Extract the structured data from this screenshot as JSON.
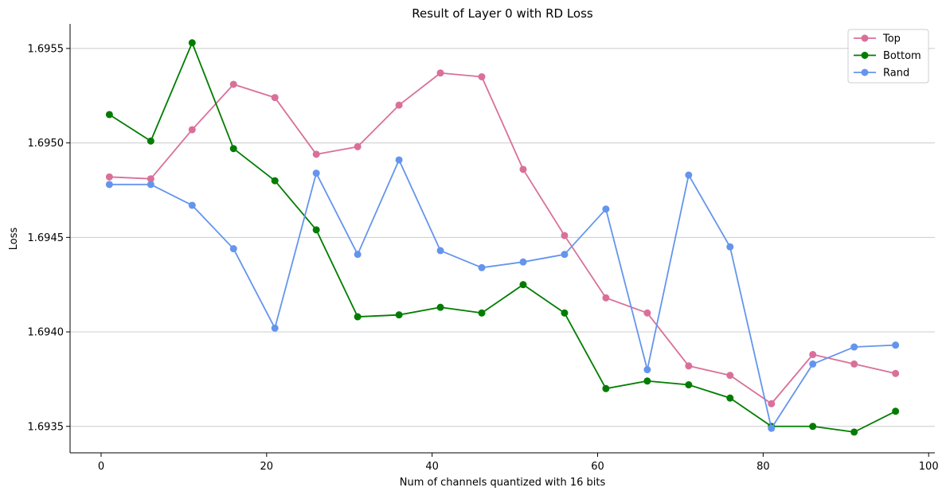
{
  "chart_data": {
    "type": "line",
    "title": "Result of Layer 0 with RD Loss",
    "xlabel": "Num of channels quantized with 16 bits",
    "ylabel": "Loss",
    "xlim": [
      -3.75,
      100.75
    ],
    "ylim": [
      1.69336,
      1.69563
    ],
    "x_ticks": [
      0,
      20,
      40,
      60,
      80,
      100
    ],
    "x_tick_labels": [
      "0",
      "20",
      "40",
      "60",
      "80",
      "100"
    ],
    "y_ticks": [
      1.6935,
      1.694,
      1.6945,
      1.695,
      1.6955
    ],
    "y_tick_labels": [
      "1.6935",
      "1.6940",
      "1.6945",
      "1.6950",
      "1.6955"
    ],
    "grid": "horizontal",
    "legend_position": "top-right",
    "x": [
      1,
      6,
      11,
      16,
      21,
      26,
      31,
      36,
      41,
      46,
      51,
      56,
      61,
      66,
      71,
      76,
      81,
      86,
      91,
      96
    ],
    "series": [
      {
        "name": "Top",
        "color": "#d9709a",
        "values": [
          1.69482,
          1.69481,
          1.69507,
          1.69531,
          1.69524,
          1.69494,
          1.69498,
          1.6952,
          1.69537,
          1.69535,
          1.69486,
          1.69451,
          1.69418,
          1.6941,
          1.69382,
          1.69377,
          1.69362,
          1.69388,
          1.69383,
          1.69378
        ]
      },
      {
        "name": "Bottom",
        "color": "#007d00",
        "values": [
          1.69515,
          1.69501,
          1.69553,
          1.69497,
          1.6948,
          1.69454,
          1.69408,
          1.69409,
          1.69413,
          1.6941,
          1.69425,
          1.6941,
          1.6937,
          1.69374,
          1.69372,
          1.69365,
          1.6935,
          1.6935,
          1.69347,
          1.69358
        ]
      },
      {
        "name": "Rand",
        "color": "#6495ed",
        "values": [
          1.69478,
          1.69478,
          1.69467,
          1.69444,
          1.69402,
          1.69484,
          1.69441,
          1.69491,
          1.69443,
          1.69434,
          1.69437,
          1.69441,
          1.69465,
          1.6938,
          1.69483,
          1.69445,
          1.69349,
          1.69383,
          1.69392,
          1.69393
        ]
      }
    ]
  }
}
